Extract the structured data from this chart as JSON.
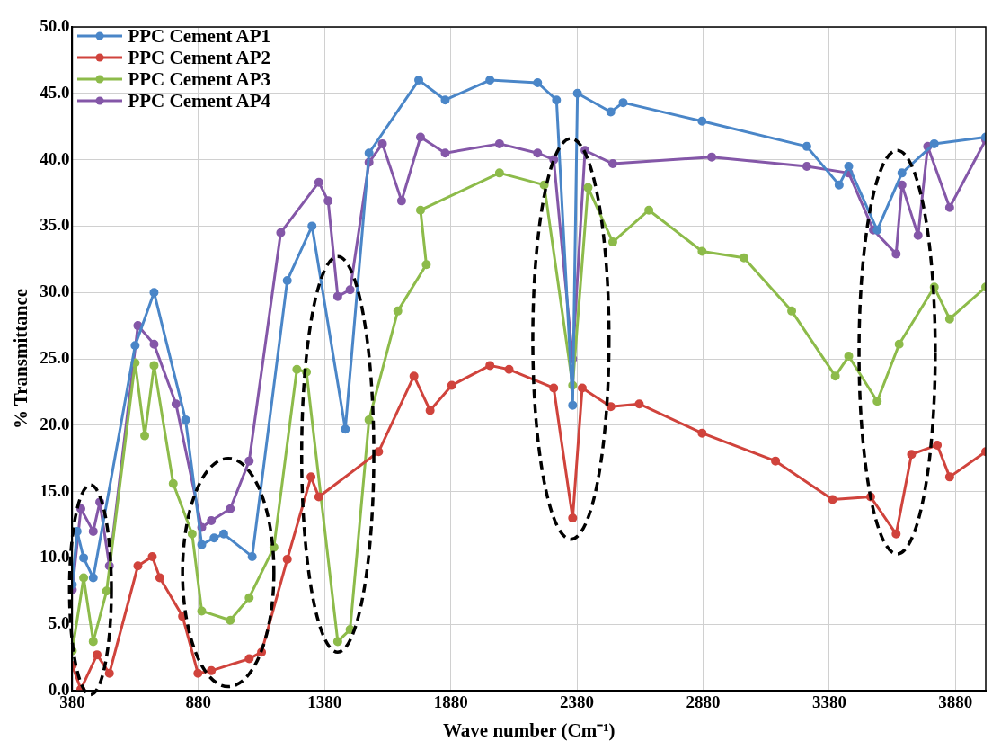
{
  "chart_data": {
    "type": "line",
    "xlabel": "Wave number (Cm⁻¹)",
    "ylabel": "% Transmittance",
    "xlim": [
      380,
      4000
    ],
    "xticks": [
      380,
      880,
      1380,
      1880,
      2380,
      2880,
      3380,
      3880
    ],
    "ylim": [
      0,
      50
    ],
    "yticks": [
      {
        "value": 0,
        "label": "0.0"
      },
      {
        "value": 5,
        "label": "5.0"
      },
      {
        "value": 10,
        "label": "10.0"
      },
      {
        "value": 15,
        "label": "15.0"
      },
      {
        "value": 20,
        "label": "20.0"
      },
      {
        "value": 25,
        "label": "25.0"
      },
      {
        "value": 30,
        "label": "30.0"
      },
      {
        "value": 35,
        "label": "35.0"
      },
      {
        "value": 40,
        "label": "40.0"
      },
      {
        "value": 45,
        "label": "45.0"
      },
      {
        "value": 50,
        "label": "50.0"
      }
    ],
    "grid": true,
    "legend": "top left",
    "marker": "circle",
    "line_style": "solid",
    "series": [
      {
        "name": "PPC Cement AP1",
        "color": "#4a86c8",
        "x": [
          380,
          399,
          425,
          463,
          629,
          704,
          829,
          893,
          942,
          980,
          1093,
          1232,
          1330,
          1462,
          1556,
          1753,
          1858,
          2035,
          2224,
          2299,
          2363,
          2382,
          2514,
          2563,
          2876,
          3291,
          3419,
          3457,
          3570,
          3668,
          3796,
          4000
        ],
        "values": [
          8,
          12,
          10,
          8.5,
          26,
          30,
          20.4,
          11,
          11.5,
          11.8,
          10.1,
          30.9,
          35,
          19.7,
          40.5,
          46,
          44.5,
          46,
          45.8,
          44.5,
          21.5,
          45,
          43.6,
          44.3,
          42.9,
          41,
          38.1,
          39.5,
          34.7,
          39,
          41.2,
          41.7
        ]
      },
      {
        "name": "PPC Cement AP2",
        "color": "#d0433c",
        "x": [
          380,
          414,
          478,
          527,
          640,
          697,
          727,
          817,
          878,
          931,
          1081,
          1130,
          1232,
          1326,
          1357,
          1594,
          1734,
          1798,
          1884,
          2035,
          2111,
          2288,
          2363,
          2401,
          2514,
          2627,
          2876,
          3167,
          3393,
          3544,
          3645,
          3706,
          3808,
          3857,
          4000
        ],
        "values": [
          1.9,
          0.1,
          2.7,
          1.3,
          9.4,
          10.1,
          8.5,
          5.6,
          1.3,
          1.5,
          2.4,
          2.9,
          9.9,
          16.1,
          14.6,
          18,
          23.7,
          21.1,
          23,
          24.5,
          24.2,
          22.8,
          13,
          22.8,
          21.4,
          21.6,
          19.4,
          17.3,
          14.4,
          14.6,
          11.8,
          17.8,
          18.5,
          16.1,
          18
        ]
      },
      {
        "name": "PPC Cement AP3",
        "color": "#8dbb4a",
        "x": [
          380,
          425,
          463,
          516,
          629,
          667,
          704,
          780,
          855,
          893,
          1006,
          1081,
          1179,
          1270,
          1308,
          1432,
          1481,
          1556,
          1670,
          1783,
          1760,
          2073,
          2250,
          2363,
          2424,
          2522,
          2665,
          2876,
          3042,
          3231,
          3404,
          3457,
          3570,
          3657,
          3796,
          3857,
          4000
        ],
        "values": [
          3,
          8.5,
          3.7,
          7.5,
          24.7,
          19.2,
          24.5,
          15.6,
          11.8,
          6,
          5.3,
          7,
          10.8,
          24.2,
          24,
          3.7,
          4.6,
          20.4,
          28.6,
          32.1,
          36.2,
          39,
          38.1,
          23,
          37.9,
          33.8,
          36.2,
          33.1,
          32.6,
          28.6,
          23.7,
          25.2,
          21.8,
          26.1,
          30.4,
          28,
          30.4
        ]
      },
      {
        "name": "PPC Cement AP4",
        "color": "#8457a8",
        "x": [
          380,
          414,
          463,
          489,
          527,
          640,
          704,
          791,
          893,
          931,
          1006,
          1081,
          1206,
          1357,
          1394,
          1432,
          1481,
          1556,
          1609,
          1685,
          1760,
          1858,
          2073,
          2224,
          2288,
          2363,
          2412,
          2522,
          2914,
          3291,
          3457,
          3555,
          3645,
          3668,
          3732,
          3770,
          3857,
          4000
        ],
        "values": [
          7.6,
          13.7,
          12,
          14.2,
          9.4,
          27.5,
          26.1,
          21.6,
          12.3,
          12.8,
          13.7,
          17.3,
          34.5,
          38.3,
          36.9,
          29.7,
          30.2,
          39.8,
          41.2,
          36.9,
          41.7,
          40.5,
          41.2,
          40.5,
          40,
          25,
          40.7,
          39.7,
          40.2,
          39.5,
          39,
          34.7,
          32.9,
          38.1,
          34.3,
          41,
          36.4,
          41.5
        ]
      }
    ]
  }
}
